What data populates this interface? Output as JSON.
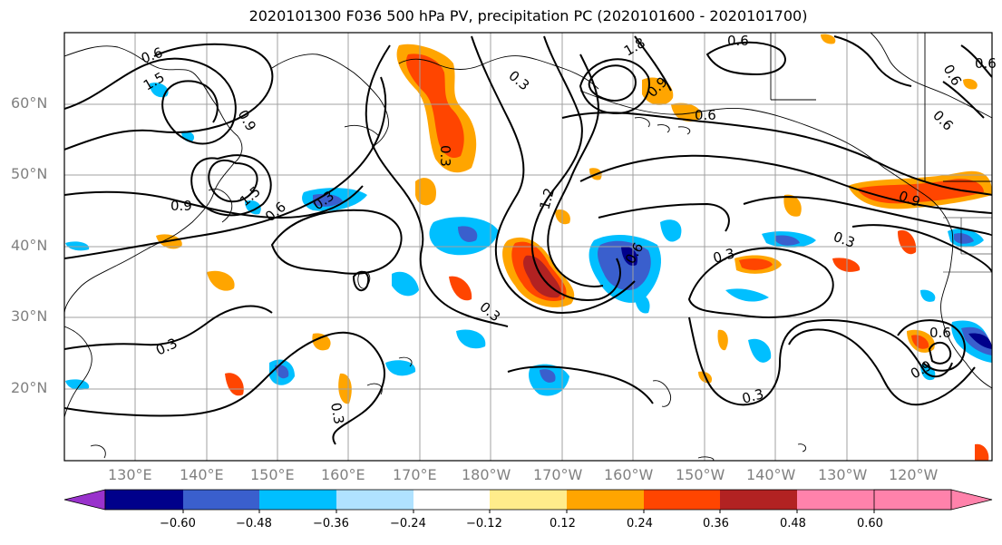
{
  "title": "2020101300 F036 500 hPa PV, precipitation PC (2020101600 - 2020101700)",
  "lat_labels": [
    "60°N",
    "50°N",
    "40°N",
    "30°N",
    "20°N"
  ],
  "lon_labels": [
    "130°E",
    "140°E",
    "150°E",
    "160°E",
    "170°E",
    "180°W",
    "170°W",
    "160°W",
    "150°W",
    "140°W",
    "130°W",
    "120°W"
  ],
  "contour_labels": [
    "0.6",
    "1.5",
    "0.9",
    "1.5",
    "0.9",
    "0.6",
    "0.3",
    "0.3",
    "0.3",
    "1.8",
    "0.9",
    "0.6",
    "0.6",
    "1.2",
    "0.6",
    "0.3",
    "0.3",
    "0.3",
    "0.9",
    "0.3",
    "0.6",
    "0.3",
    "0.6",
    "0.6",
    "0.3",
    "0.9",
    "0.6"
  ],
  "colorbar": {
    "ticks": [
      "−0.60",
      "−0.48",
      "−0.36",
      "−0.24",
      "−0.12",
      "0.12",
      "0.24",
      "0.36",
      "0.48",
      "0.60"
    ],
    "colors": [
      "#9932cc",
      "#00008b",
      "#3a5fcd",
      "#00bfff",
      "#b0e2ff",
      "#ffffff",
      "#ffec8b",
      "#ffa500",
      "#ff4500",
      "#b22222",
      "#ff82ab"
    ]
  },
  "chart_data": {
    "type": "map",
    "title": "2020101300 F036 500 hPa PV, precipitation PC (2020101600 - 2020101700)",
    "lon_range": [
      "120°E",
      "109°W"
    ],
    "lat_range": [
      "10°N",
      "70°N"
    ],
    "grid": true,
    "colorbar_levels": [
      -0.6,
      -0.48,
      -0.36,
      -0.24,
      -0.12,
      0.12,
      0.24,
      0.36,
      0.48,
      0.6
    ],
    "pv_contour_levels": [
      0.3,
      0.6,
      0.9,
      1.2,
      1.5,
      1.8
    ]
  }
}
